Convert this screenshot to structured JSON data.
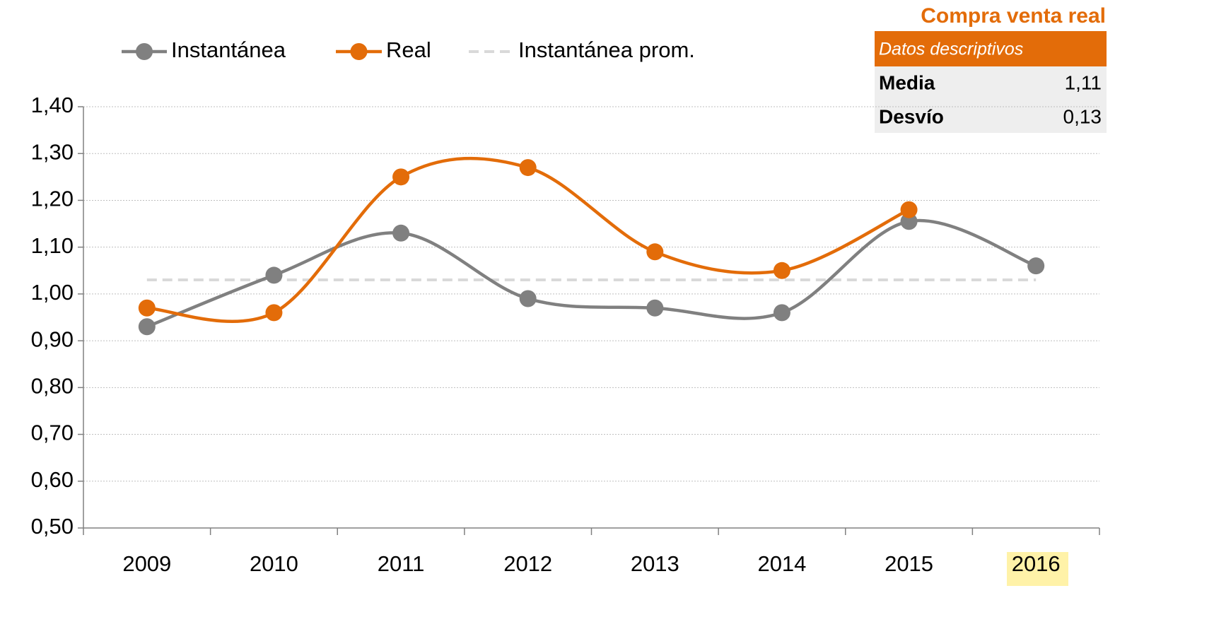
{
  "chart_data": {
    "type": "line",
    "categories": [
      "2009",
      "2010",
      "2011",
      "2012",
      "2013",
      "2014",
      "2015",
      "2016"
    ],
    "series": [
      {
        "name": "Instantánea",
        "color": "#808080",
        "values": [
          0.93,
          1.04,
          1.13,
          0.99,
          0.97,
          0.96,
          1.155,
          1.06
        ]
      },
      {
        "name": "Real",
        "color": "#e36c09",
        "values": [
          0.97,
          0.96,
          1.25,
          1.27,
          1.09,
          1.05,
          1.18,
          null
        ]
      },
      {
        "name": "Instantánea prom.",
        "color": "#d9d9d9",
        "dashed": true,
        "values": [
          1.03,
          1.03,
          1.03,
          1.03,
          1.03,
          1.03,
          1.03,
          1.03
        ]
      }
    ],
    "ylim": [
      0.5,
      1.4
    ],
    "yticks": [
      {
        "value": 0.5,
        "label": "0,50"
      },
      {
        "value": 0.6,
        "label": "0,60"
      },
      {
        "value": 0.7,
        "label": "0,70"
      },
      {
        "value": 0.8,
        "label": "0,80"
      },
      {
        "value": 0.9,
        "label": "0,90"
      },
      {
        "value": 1.0,
        "label": "1,00"
      },
      {
        "value": 1.1,
        "label": "1,10"
      },
      {
        "value": 1.2,
        "label": "1,20"
      },
      {
        "value": 1.3,
        "label": "1,30"
      },
      {
        "value": 1.4,
        "label": "1,40"
      }
    ],
    "grid": true,
    "smooth": true,
    "legend": "top"
  },
  "table": {
    "title": "Compra venta real",
    "header": "Datos descriptivos",
    "rows": [
      [
        "Media",
        "1,11"
      ],
      [
        "Desvío",
        "0,13"
      ]
    ]
  }
}
